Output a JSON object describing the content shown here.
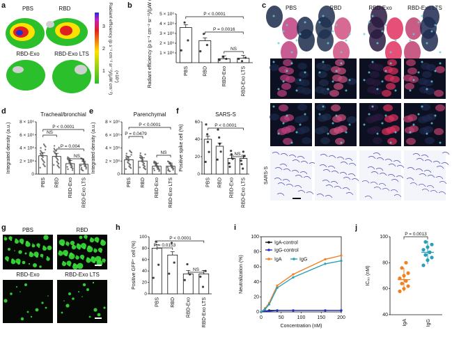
{
  "panels": {
    "a": {
      "letter": "a",
      "titles": [
        "PBS",
        "RBD",
        "RBD-Exo",
        "RBD-Exo LTS"
      ],
      "colorbar_label": "Radiant efficiency (p s⁻¹ cm⁻² sr⁻¹)/(μW cm⁻²)",
      "colorbar_ticks": [
        "1",
        "2",
        "3"
      ],
      "colorbar_exp": "(×10⁷)",
      "colors": {
        "low": "#2bbf2b",
        "mid": "#ffe000",
        "high": "#e02020",
        "top": "#2030d0"
      }
    },
    "b": {
      "letter": "b",
      "ylabel": "Radiant efficiency (p s⁻¹ cm⁻² sr⁻¹)/(μW cm⁻²)",
      "yticks": [
        "1 × 10⁶",
        "2 × 10⁶",
        "3 × 10⁶",
        "4 × 10⁶",
        "5 × 10⁶"
      ],
      "categories": [
        "PBS",
        "RBD",
        "RBD-Exo",
        "RBD-Exo LTS"
      ],
      "stats": [
        "P < 0.0001",
        "P = 0.0016",
        "NS"
      ]
    },
    "c": {
      "letter": "c",
      "titles": [
        "PBS",
        "RBD",
        "RBD-Exo",
        "RBD-Exo LTS"
      ],
      "row_label": "SARS-S"
    },
    "d": {
      "letter": "d",
      "title": "Tracheal/bronchial",
      "ylabel": "Integrated density (a.u.)",
      "yticks": [
        "0",
        "2 × 10⁶",
        "4 × 10⁶",
        "6 × 10⁶",
        "8 × 10⁶"
      ],
      "categories": [
        "PBS",
        "RBD",
        "RBD-Exo",
        "RBD-Exo LTS"
      ],
      "stats": [
        "P < 0.0001",
        "NS",
        "P = 0.004",
        "NS"
      ]
    },
    "e": {
      "letter": "e",
      "title": "Parenchymal",
      "ylabel": "Integrated density (a.u.)",
      "yticks": [
        "0",
        "2 × 10⁶",
        "4 × 10⁶",
        "6 × 10⁶",
        "8 × 10⁶"
      ],
      "categories": [
        "PBS",
        "RBD",
        "RBD-Exo",
        "RBD-Exo LTS"
      ],
      "stats": [
        "P < 0.0001",
        "P = 0.0479",
        "NS"
      ]
    },
    "f": {
      "letter": "f",
      "title": "SARS-S",
      "ylabel": "Positive spike cell (%)",
      "yticks": [
        "0",
        "20",
        "40",
        "60"
      ],
      "categories": [
        "PBS",
        "RBD",
        "RBD-Exo",
        "RBD-Exo LTS"
      ],
      "stats": [
        "P < 0.0001",
        "NS"
      ]
    },
    "g": {
      "letter": "g",
      "titles": [
        "PBS",
        "RBD",
        "RBD-Exo",
        "RBD-Exo LTS"
      ]
    },
    "h": {
      "letter": "h",
      "ylabel": "Positive GFP⁺ cell (%)",
      "yticks": [
        "0",
        "20",
        "40",
        "60",
        "80",
        "100"
      ],
      "categories": [
        "PBS",
        "RBD",
        "RBD-Exo",
        "RBD-Exo LTS"
      ],
      "stats": [
        "P = 0.0153",
        "P < 0.0001",
        "NS"
      ]
    },
    "i": {
      "letter": "i",
      "ylabel": "Neutralization (%)",
      "xlabel": "Concentration (nM)",
      "yticks": [
        "0",
        "20",
        "40",
        "60",
        "80",
        "100"
      ],
      "xticks": [
        "0",
        "50",
        "100",
        "150",
        "200"
      ],
      "legend": [
        "IgA-control",
        "IgG-control",
        "IgA",
        "IgG"
      ]
    },
    "j": {
      "letter": "j",
      "ylabel": "IC₅₀ (nM)",
      "yticks": [
        "40",
        "60",
        "80",
        "100"
      ],
      "categories": [
        "IgA",
        "IgG"
      ],
      "stats": [
        "P = 0.0013"
      ]
    }
  },
  "chart_data": [
    {
      "type": "bar",
      "panel": "b",
      "categories": [
        "PBS",
        "RBD",
        "RBD-Exo",
        "RBD-Exo LTS"
      ],
      "values": [
        3600000,
        2250000,
        400000,
        450000
      ],
      "ylim": [
        0,
        5000000
      ]
    },
    {
      "type": "bar",
      "panel": "d",
      "categories": [
        "PBS",
        "RBD",
        "RBD-Exo",
        "RBD-Exo LTS"
      ],
      "values": [
        2800000,
        2700000,
        1600000,
        1500000
      ],
      "ylim": [
        0,
        8000000
      ]
    },
    {
      "type": "bar",
      "panel": "e",
      "categories": [
        "PBS",
        "RBD",
        "RBD-Exo",
        "RBD-Exo LTS"
      ],
      "values": [
        2200000,
        2000000,
        1200000,
        1200000
      ],
      "ylim": [
        0,
        8000000
      ]
    },
    {
      "type": "bar",
      "panel": "f",
      "categories": [
        "PBS",
        "RBD",
        "RBD-Exo",
        "RBD-Exo LTS"
      ],
      "values": [
        40,
        32,
        18,
        18
      ],
      "ylim": [
        0,
        60
      ]
    },
    {
      "type": "bar",
      "panel": "h",
      "categories": [
        "PBS",
        "RBD",
        "RBD-Exo",
        "RBD-Exo LTS"
      ],
      "values": [
        80,
        68,
        35,
        35
      ],
      "ylim": [
        0,
        100
      ]
    },
    {
      "type": "line",
      "panel": "i",
      "x": [
        0,
        10,
        20,
        40,
        80,
        160,
        200
      ],
      "series": [
        {
          "name": "IgA-control",
          "values": [
            0,
            1,
            2,
            2,
            2,
            2,
            2
          ],
          "color": "#111111"
        },
        {
          "name": "IgG-control",
          "values": [
            0,
            1,
            1,
            2,
            2,
            2,
            2
          ],
          "color": "#2030c0"
        },
        {
          "name": "IgA",
          "values": [
            0,
            5,
            12,
            35,
            50,
            70,
            75
          ],
          "color": "#f08020"
        },
        {
          "name": "IgG",
          "values": [
            0,
            4,
            10,
            32,
            46,
            64,
            68
          ],
          "color": "#2aa0b8"
        }
      ],
      "xlim": [
        0,
        200
      ],
      "ylim": [
        0,
        100
      ]
    },
    {
      "type": "scatter",
      "panel": "j",
      "categories": [
        "IgA",
        "IgG"
      ],
      "series": [
        {
          "name": "IgA",
          "values": [
            58,
            60,
            62,
            64,
            66,
            68,
            70,
            72,
            76,
            80
          ],
          "mean": 67,
          "color": "#f08020"
        },
        {
          "name": "IgG",
          "values": [
            78,
            82,
            84,
            86,
            88,
            90,
            92,
            94,
            96
          ],
          "mean": 88,
          "color": "#2aa0b8"
        }
      ],
      "ylim": [
        40,
        100
      ]
    }
  ]
}
